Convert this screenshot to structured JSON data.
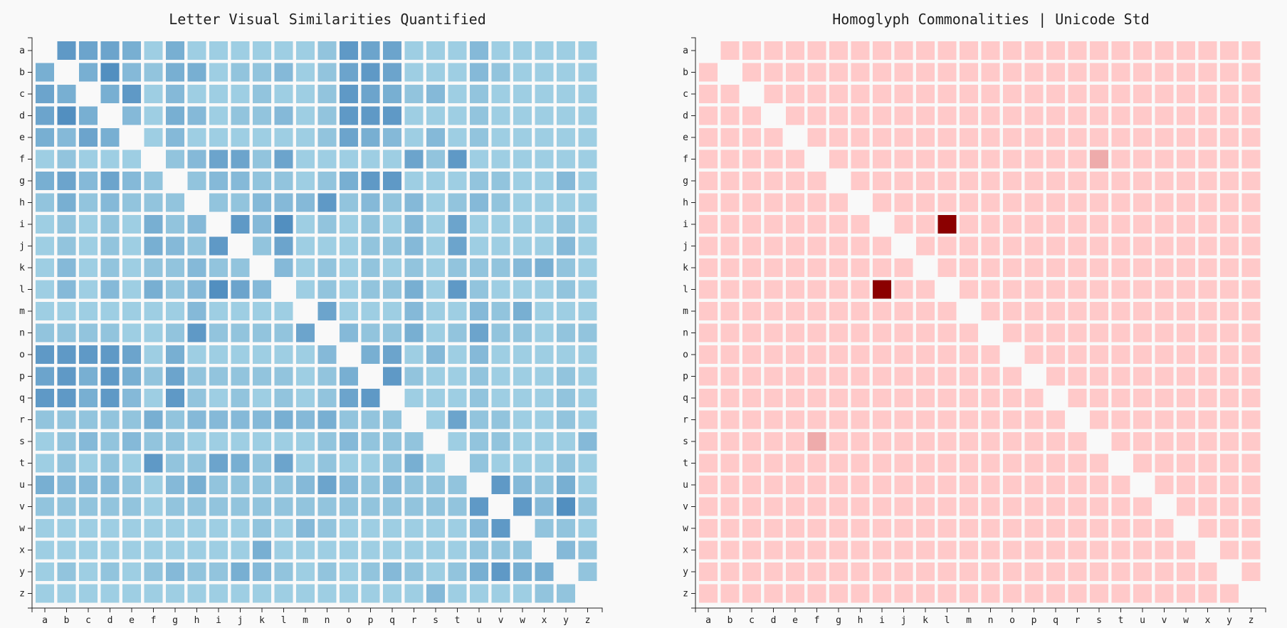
{
  "chart_data": [
    {
      "type": "heatmap",
      "title": "Letter Visual Similarities Quantified",
      "xlabel": "",
      "ylabel": "",
      "x": [
        "a",
        "b",
        "c",
        "d",
        "e",
        "f",
        "g",
        "h",
        "i",
        "j",
        "k",
        "l",
        "m",
        "n",
        "o",
        "p",
        "q",
        "r",
        "s",
        "t",
        "u",
        "v",
        "w",
        "x",
        "y",
        "z"
      ],
      "y": [
        "a",
        "b",
        "c",
        "d",
        "e",
        "f",
        "g",
        "h",
        "i",
        "j",
        "k",
        "l",
        "m",
        "n",
        "o",
        "p",
        "q",
        "r",
        "s",
        "t",
        "u",
        "v",
        "w",
        "x",
        "y",
        "z"
      ],
      "value_range": [
        0,
        1
      ],
      "color_low": "#abd9e9",
      "color_high": "#2c6faf",
      "diagonal_empty": true,
      "values": [
        [
          0,
          0.6,
          0.5,
          0.5,
          0.4,
          0.1,
          0.4,
          0.1,
          0.1,
          0.1,
          0.1,
          0.1,
          0.1,
          0.2,
          0.6,
          0.5,
          0.5,
          0.1,
          0.1,
          0.1,
          0.3,
          0.1,
          0.1,
          0.1,
          0.1,
          0.1
        ],
        [
          0.4,
          0,
          0.4,
          0.7,
          0.3,
          0.2,
          0.4,
          0.4,
          0.1,
          0.2,
          0.2,
          0.3,
          0.1,
          0.2,
          0.5,
          0.6,
          0.5,
          0.1,
          0.1,
          0.1,
          0.3,
          0.2,
          0.1,
          0.1,
          0.1,
          0.1
        ],
        [
          0.5,
          0.4,
          0,
          0.4,
          0.6,
          0.1,
          0.3,
          0.1,
          0.1,
          0.1,
          0.2,
          0.1,
          0.1,
          0.2,
          0.6,
          0.5,
          0.4,
          0.2,
          0.3,
          0.1,
          0.2,
          0.1,
          0.1,
          0.1,
          0.1,
          0.1
        ],
        [
          0.5,
          0.7,
          0.4,
          0,
          0.3,
          0.1,
          0.4,
          0.3,
          0.1,
          0.2,
          0.2,
          0.3,
          0.1,
          0.2,
          0.6,
          0.6,
          0.6,
          0.1,
          0.1,
          0.1,
          0.2,
          0.1,
          0.1,
          0.1,
          0.1,
          0.1
        ],
        [
          0.4,
          0.3,
          0.5,
          0.4,
          0,
          0.1,
          0.3,
          0.1,
          0.1,
          0.1,
          0.1,
          0.1,
          0.1,
          0.2,
          0.5,
          0.4,
          0.3,
          0.1,
          0.3,
          0.1,
          0.2,
          0.1,
          0.1,
          0.1,
          0.1,
          0.1
        ],
        [
          0.1,
          0.2,
          0.1,
          0.1,
          0.1,
          0,
          0.2,
          0.3,
          0.5,
          0.5,
          0.2,
          0.5,
          0.1,
          0.1,
          0.1,
          0.1,
          0.1,
          0.5,
          0.2,
          0.6,
          0.1,
          0.1,
          0.1,
          0.1,
          0.1,
          0.1
        ],
        [
          0.4,
          0.5,
          0.3,
          0.5,
          0.3,
          0.2,
          0,
          0.2,
          0.3,
          0.3,
          0.2,
          0.2,
          0.1,
          0.2,
          0.4,
          0.6,
          0.6,
          0.1,
          0.1,
          0.1,
          0.2,
          0.2,
          0.1,
          0.1,
          0.3,
          0.1
        ],
        [
          0.2,
          0.4,
          0.2,
          0.3,
          0.2,
          0.2,
          0.2,
          0,
          0.2,
          0.2,
          0.3,
          0.3,
          0.3,
          0.6,
          0.2,
          0.3,
          0.2,
          0.3,
          0.1,
          0.2,
          0.3,
          0.2,
          0.1,
          0.1,
          0.1,
          0.1
        ],
        [
          0.1,
          0.2,
          0.1,
          0.2,
          0.1,
          0.4,
          0.2,
          0.3,
          0,
          0.6,
          0.3,
          0.7,
          0.1,
          0.2,
          0.1,
          0.2,
          0.1,
          0.3,
          0.1,
          0.5,
          0.1,
          0.1,
          0.1,
          0.1,
          0.2,
          0.1
        ],
        [
          0.1,
          0.2,
          0.1,
          0.2,
          0.1,
          0.4,
          0.3,
          0.2,
          0.6,
          0,
          0.2,
          0.5,
          0.1,
          0.1,
          0.1,
          0.2,
          0.2,
          0.3,
          0.1,
          0.5,
          0.1,
          0.1,
          0.1,
          0.1,
          0.3,
          0.1
        ],
        [
          0.1,
          0.3,
          0.1,
          0.2,
          0.1,
          0.2,
          0.2,
          0.3,
          0.2,
          0.2,
          0,
          0.3,
          0.1,
          0.2,
          0.1,
          0.2,
          0.1,
          0.2,
          0.1,
          0.2,
          0.2,
          0.2,
          0.3,
          0.4,
          0.2,
          0.1
        ],
        [
          0.1,
          0.3,
          0.1,
          0.3,
          0.1,
          0.4,
          0.2,
          0.3,
          0.7,
          0.5,
          0.3,
          0,
          0.1,
          0.2,
          0.1,
          0.2,
          0.2,
          0.4,
          0.1,
          0.6,
          0.2,
          0.1,
          0.1,
          0.1,
          0.2,
          0.1
        ],
        [
          0.1,
          0.1,
          0.1,
          0.1,
          0.1,
          0.1,
          0.1,
          0.3,
          0.1,
          0.1,
          0.1,
          0.1,
          0,
          0.5,
          0.1,
          0.1,
          0.1,
          0.3,
          0.1,
          0.1,
          0.3,
          0.2,
          0.4,
          0.1,
          0.1,
          0.1
        ],
        [
          0.2,
          0.2,
          0.2,
          0.2,
          0.1,
          0.1,
          0.2,
          0.6,
          0.2,
          0.2,
          0.2,
          0.2,
          0.5,
          0,
          0.3,
          0.2,
          0.2,
          0.4,
          0.1,
          0.2,
          0.5,
          0.2,
          0.2,
          0.1,
          0.2,
          0.2
        ],
        [
          0.6,
          0.6,
          0.6,
          0.6,
          0.5,
          0.1,
          0.4,
          0.1,
          0.1,
          0.1,
          0.1,
          0.1,
          0.1,
          0.3,
          0,
          0.4,
          0.5,
          0.1,
          0.3,
          0.1,
          0.3,
          0.1,
          0.1,
          0.1,
          0.1,
          0.1
        ],
        [
          0.5,
          0.6,
          0.4,
          0.6,
          0.4,
          0.2,
          0.5,
          0.2,
          0.2,
          0.2,
          0.2,
          0.2,
          0.1,
          0.2,
          0.4,
          0,
          0.6,
          0.2,
          0.1,
          0.1,
          0.2,
          0.1,
          0.1,
          0.1,
          0.2,
          0.1
        ],
        [
          0.6,
          0.6,
          0.4,
          0.6,
          0.3,
          0.1,
          0.6,
          0.2,
          0.1,
          0.2,
          0.1,
          0.2,
          0.1,
          0.2,
          0.5,
          0.6,
          0,
          0.1,
          0.1,
          0.1,
          0.2,
          0.1,
          0.1,
          0.1,
          0.2,
          0.1
        ],
        [
          0.2,
          0.2,
          0.2,
          0.2,
          0.2,
          0.4,
          0.2,
          0.3,
          0.3,
          0.3,
          0.3,
          0.4,
          0.3,
          0.4,
          0.2,
          0.2,
          0.2,
          0,
          0.1,
          0.5,
          0.2,
          0.2,
          0.1,
          0.1,
          0.2,
          0.1
        ],
        [
          0.1,
          0.2,
          0.3,
          0.2,
          0.3,
          0.2,
          0.2,
          0.1,
          0.1,
          0.1,
          0.1,
          0.1,
          0.1,
          0.2,
          0.3,
          0.2,
          0.2,
          0.2,
          0,
          0.1,
          0.2,
          0.2,
          0.1,
          0.1,
          0.1,
          0.3
        ],
        [
          0.1,
          0.2,
          0.1,
          0.2,
          0.1,
          0.6,
          0.2,
          0.2,
          0.5,
          0.4,
          0.2,
          0.5,
          0.1,
          0.2,
          0.1,
          0.1,
          0.2,
          0.4,
          0.1,
          0,
          0.2,
          0.1,
          0.1,
          0.1,
          0.2,
          0.1
        ],
        [
          0.4,
          0.3,
          0.3,
          0.3,
          0.2,
          0.1,
          0.3,
          0.4,
          0.2,
          0.2,
          0.2,
          0.2,
          0.3,
          0.5,
          0.3,
          0.2,
          0.3,
          0.2,
          0.2,
          0.2,
          0,
          0.6,
          0.3,
          0.2,
          0.4,
          0.1
        ],
        [
          0.2,
          0.2,
          0.2,
          0.2,
          0.2,
          0.1,
          0.2,
          0.2,
          0.2,
          0.2,
          0.2,
          0.2,
          0.2,
          0.2,
          0.2,
          0.2,
          0.2,
          0.2,
          0.2,
          0.2,
          0.6,
          0,
          0.6,
          0.3,
          0.7,
          0.2
        ],
        [
          0.1,
          0.1,
          0.1,
          0.1,
          0.1,
          0.1,
          0.1,
          0.1,
          0.1,
          0.1,
          0.2,
          0.1,
          0.3,
          0.2,
          0.1,
          0.1,
          0.1,
          0.1,
          0.1,
          0.1,
          0.3,
          0.6,
          0,
          0.2,
          0.2,
          0.1
        ],
        [
          0.1,
          0.1,
          0.1,
          0.1,
          0.1,
          0.1,
          0.1,
          0.1,
          0.1,
          0.1,
          0.4,
          0.1,
          0.1,
          0.1,
          0.1,
          0.1,
          0.1,
          0.1,
          0.1,
          0.1,
          0.2,
          0.2,
          0.2,
          0,
          0.3,
          0.2
        ],
        [
          0.1,
          0.2,
          0.1,
          0.2,
          0.1,
          0.2,
          0.3,
          0.2,
          0.2,
          0.4,
          0.3,
          0.2,
          0.1,
          0.2,
          0.1,
          0.2,
          0.3,
          0.2,
          0.1,
          0.2,
          0.4,
          0.6,
          0.4,
          0.4,
          0,
          0.2
        ],
        [
          0.1,
          0.1,
          0.1,
          0.1,
          0.1,
          0.1,
          0.1,
          0.1,
          0.1,
          0.1,
          0.1,
          0.1,
          0.1,
          0.1,
          0.1,
          0.1,
          0.1,
          0.1,
          0.3,
          0.1,
          0.1,
          0.1,
          0.1,
          0.2,
          0.2,
          0
        ]
      ]
    },
    {
      "type": "heatmap",
      "title": "Homoglyph Commonalities | Unicode Std",
      "xlabel": "",
      "ylabel": "",
      "x": [
        "a",
        "b",
        "c",
        "d",
        "e",
        "f",
        "g",
        "h",
        "i",
        "j",
        "k",
        "l",
        "m",
        "n",
        "o",
        "p",
        "q",
        "r",
        "s",
        "t",
        "u",
        "v",
        "w",
        "x",
        "y",
        "z"
      ],
      "y": [
        "a",
        "b",
        "c",
        "d",
        "e",
        "f",
        "g",
        "h",
        "i",
        "j",
        "k",
        "l",
        "m",
        "n",
        "o",
        "p",
        "q",
        "r",
        "s",
        "t",
        "u",
        "v",
        "w",
        "x",
        "y",
        "z"
      ],
      "value_range": [
        0,
        1
      ],
      "color_low": "#ffc9c9",
      "color_high": "#8b0000",
      "diagonal_empty": true,
      "default_value": 0,
      "nonzero_cells": [
        {
          "row": "f",
          "col": "s",
          "value": 0.15
        },
        {
          "row": "s",
          "col": "f",
          "value": 0.15
        },
        {
          "row": "i",
          "col": "l",
          "value": 1
        },
        {
          "row": "l",
          "col": "i",
          "value": 1
        }
      ]
    }
  ]
}
